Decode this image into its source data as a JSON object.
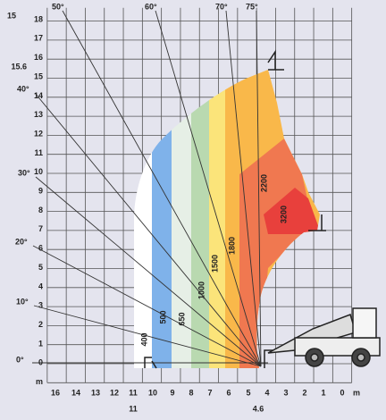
{
  "title": "15",
  "y_labels": [
    "18",
    "17",
    "16",
    "15",
    "14",
    "13",
    "12",
    "11",
    "10",
    "9",
    "8",
    "7",
    "6",
    "5",
    "4",
    "3",
    "2",
    "1",
    "0",
    "m"
  ],
  "max_height_label": "15.6",
  "x_labels": [
    "16",
    "14",
    "13",
    "12",
    "11",
    "10",
    "9",
    "8",
    "7",
    "6",
    "5",
    "4",
    "3",
    "2",
    "1",
    "0",
    "m"
  ],
  "x_extra_labels": [
    "11",
    "4.6"
  ],
  "angle_labels": [
    "50°",
    "60°",
    "70°",
    "75°",
    "40°",
    "30°",
    "20°",
    "10°",
    "0°"
  ],
  "load_labels": [
    "400",
    "500",
    "650",
    "1000",
    "1500",
    "1800",
    "2200",
    "3200"
  ]
}
